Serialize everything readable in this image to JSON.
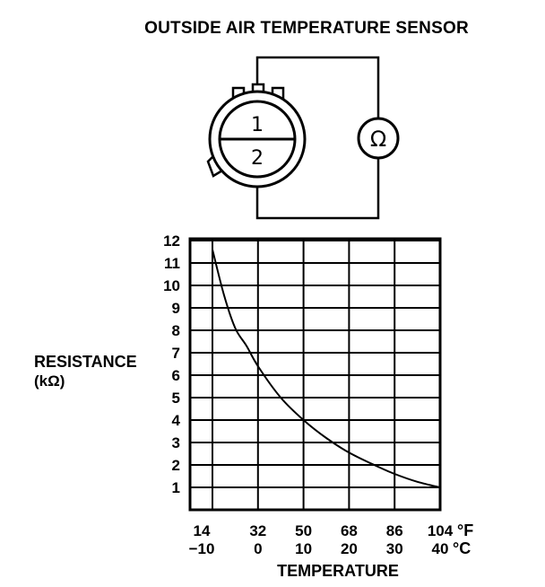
{
  "title": "OUTSIDE AIR TEMPERATURE SENSOR",
  "connector": {
    "pins": [
      "1",
      "2"
    ],
    "meter_symbol": "Ω",
    "meter_icon": "ohmmeter-icon"
  },
  "chart_data": {
    "type": "line",
    "ylabel": "RESISTANCE",
    "ylabel_unit": "(kΩ)",
    "xlabel": "TEMPERATURE",
    "ylim": [
      0,
      12
    ],
    "xlim_c": [
      -10,
      40
    ],
    "y_ticks": [
      "1",
      "2",
      "3",
      "4",
      "5",
      "6",
      "7",
      "8",
      "9",
      "10",
      "11",
      "12"
    ],
    "x_ticks_f": [
      "14",
      "32",
      "50",
      "68",
      "86",
      "104"
    ],
    "x_ticks_c": [
      "−10",
      "0",
      "10",
      "20",
      "30",
      "40"
    ],
    "x_unit_f": "°F",
    "x_unit_c": "°C",
    "grid": true,
    "series": [
      {
        "x": [
          -10,
          -7.5,
          -5,
          -2.5,
          0,
          5,
          10,
          15,
          20,
          25,
          30,
          35,
          40
        ],
        "y": [
          11.6,
          9.6,
          8.1,
          7.3,
          6.4,
          5.0,
          4.0,
          3.2,
          2.55,
          2.05,
          1.6,
          1.25,
          1.0
        ]
      }
    ]
  }
}
